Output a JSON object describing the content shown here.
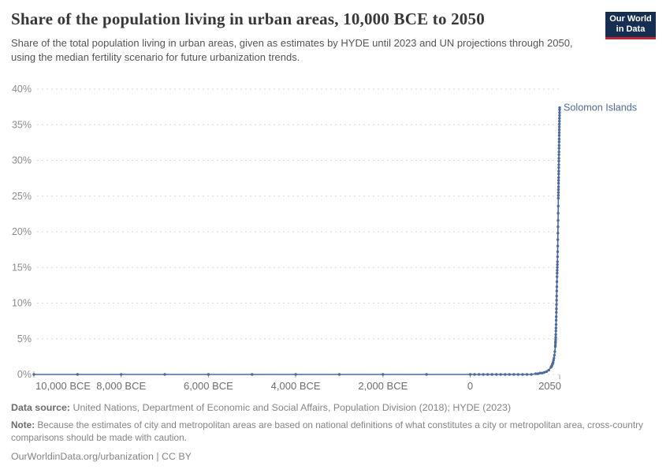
{
  "header": {
    "title": "Share of the population living in urban areas, 10,000 BCE to 2050",
    "subtitle": "Share of the total population living in urban areas, given as estimates by HYDE until 2023 and UN projections through 2050, using the median fertility scenario for future urbanization trends.",
    "logo": {
      "line1": "Our World",
      "line2": "in Data"
    }
  },
  "footer": {
    "data_source_label": "Data source:",
    "data_source_text": " United Nations, Department of Economic and Social Affairs, Population Division (2018); HYDE (2023)",
    "note_label": "Note:",
    "note_text": " Because the estimates of city and metropolitan areas are based on national definitions of what constitutes a city or metropolitan area, cross-country comparisons should be made with caution.",
    "citation": "OurWorldinData.org/urbanization | CC BY"
  },
  "colors": {
    "line": "#4c6a9c",
    "entity_label": "#4c6a9c",
    "grid": "#d9d9d9",
    "tick": "#a3a3a3",
    "y_axis_text": "#8b8b8b",
    "x_axis_text": "#6d6d6d"
  },
  "chart_data": {
    "type": "line",
    "title": "Share of the population living in urban areas, 10,000 BCE to 2050",
    "entity_label": "Solomon Islands",
    "xlabel": "",
    "ylabel": "",
    "xlim": [
      -10000,
      2050
    ],
    "ylim": [
      0,
      40
    ],
    "grid": true,
    "x_ticks": [
      -10000,
      -8000,
      -6000,
      -4000,
      -2000,
      0,
      2050
    ],
    "x_tick_labels": [
      "10,000 BCE",
      "8,000 BCE",
      "6,000 BCE",
      "4,000 BCE",
      "2,000 BCE",
      "0",
      "2050"
    ],
    "y_ticks": [
      0,
      5,
      10,
      15,
      20,
      25,
      30,
      35,
      40
    ],
    "y_tick_labels": [
      "0%",
      "5%",
      "10%",
      "15%",
      "20%",
      "25%",
      "30%",
      "35%",
      "40%"
    ],
    "series": [
      {
        "name": "Solomon Islands",
        "points": [
          [
            -10000,
            0
          ],
          [
            -9000,
            0
          ],
          [
            -8000,
            0
          ],
          [
            -7000,
            0
          ],
          [
            -6000,
            0
          ],
          [
            -5000,
            0
          ],
          [
            -4000,
            0
          ],
          [
            -3000,
            0
          ],
          [
            -2000,
            0
          ],
          [
            -1000,
            0
          ],
          [
            0,
            0
          ],
          [
            100,
            0
          ],
          [
            200,
            0
          ],
          [
            300,
            0
          ],
          [
            400,
            0
          ],
          [
            500,
            0
          ],
          [
            600,
            0
          ],
          [
            700,
            0
          ],
          [
            800,
            0
          ],
          [
            900,
            0
          ],
          [
            1000,
            0
          ],
          [
            1100,
            0
          ],
          [
            1200,
            0
          ],
          [
            1300,
            0
          ],
          [
            1400,
            0
          ],
          [
            1500,
            0.1
          ],
          [
            1550,
            0.1
          ],
          [
            1600,
            0.2
          ],
          [
            1650,
            0.2
          ],
          [
            1700,
            0.3
          ],
          [
            1750,
            0.4
          ],
          [
            1800,
            0.6
          ],
          [
            1850,
            1.0
          ],
          [
            1860,
            1.1
          ],
          [
            1870,
            1.2
          ],
          [
            1880,
            1.4
          ],
          [
            1890,
            1.5
          ],
          [
            1900,
            1.7
          ],
          [
            1910,
            2.0
          ],
          [
            1920,
            2.3
          ],
          [
            1930,
            2.7
          ],
          [
            1940,
            3.2
          ],
          [
            1950,
            3.9
          ],
          [
            1952,
            4.1
          ],
          [
            1954,
            4.4
          ],
          [
            1956,
            4.6
          ],
          [
            1958,
            4.9
          ],
          [
            1960,
            5.2
          ],
          [
            1962,
            5.6
          ],
          [
            1964,
            6.1
          ],
          [
            1966,
            6.5
          ],
          [
            1968,
            7.0
          ],
          [
            1970,
            7.6
          ],
          [
            1972,
            8.1
          ],
          [
            1974,
            8.7
          ],
          [
            1976,
            9.2
          ],
          [
            1978,
            9.8
          ],
          [
            1980,
            10.4
          ],
          [
            1982,
            11.0
          ],
          [
            1984,
            11.7
          ],
          [
            1986,
            12.3
          ],
          [
            1988,
            13.0
          ],
          [
            1990,
            13.7
          ],
          [
            1992,
            14.2
          ],
          [
            1994,
            14.6
          ],
          [
            1996,
            15.0
          ],
          [
            1998,
            15.4
          ],
          [
            2000,
            15.8
          ],
          [
            2002,
            16.5
          ],
          [
            2004,
            17.2
          ],
          [
            2006,
            18.0
          ],
          [
            2008,
            18.9
          ],
          [
            2010,
            19.8
          ],
          [
            2012,
            20.7
          ],
          [
            2014,
            21.6
          ],
          [
            2016,
            22.6
          ],
          [
            2018,
            23.6
          ],
          [
            2020,
            24.7
          ],
          [
            2021,
            25.1
          ],
          [
            2022,
            25.5
          ],
          [
            2023,
            25.9
          ],
          [
            2024,
            26.3
          ],
          [
            2025,
            26.8
          ],
          [
            2026,
            27.2
          ],
          [
            2027,
            27.6
          ],
          [
            2028,
            28.1
          ],
          [
            2029,
            28.5
          ],
          [
            2030,
            29.0
          ],
          [
            2031,
            29.4
          ],
          [
            2032,
            29.9
          ],
          [
            2033,
            30.3
          ],
          [
            2034,
            30.8
          ],
          [
            2035,
            31.2
          ],
          [
            2036,
            31.7
          ],
          [
            2037,
            32.1
          ],
          [
            2038,
            32.6
          ],
          [
            2039,
            33.0
          ],
          [
            2040,
            33.5
          ],
          [
            2041,
            33.9
          ],
          [
            2042,
            34.3
          ],
          [
            2043,
            34.7
          ],
          [
            2044,
            35.1
          ],
          [
            2045,
            35.5
          ],
          [
            2046,
            35.9
          ],
          [
            2047,
            36.3
          ],
          [
            2048,
            36.7
          ],
          [
            2049,
            37.1
          ],
          [
            2050,
            37.4
          ]
        ]
      }
    ]
  }
}
